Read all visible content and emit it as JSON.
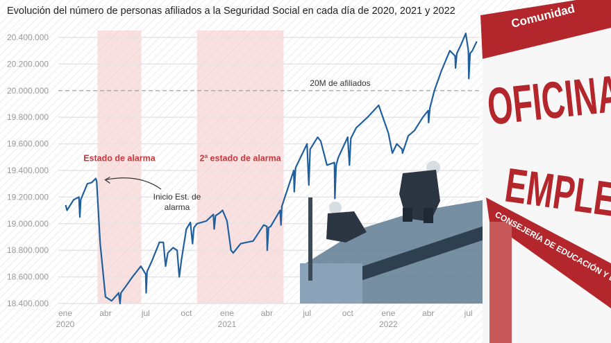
{
  "chart_data": {
    "type": "line",
    "title": "Evolución del número de personas afiliados a la Seguridad Social en cada día de 2020, 2021 y 2022",
    "xlabel": "",
    "ylabel": "",
    "ylim": [
      18400000,
      20400000
    ],
    "xlim": [
      "2020-01-01",
      "2022-07-31"
    ],
    "grid": true,
    "y_ticks": [
      "18.400.000",
      "18.600.000",
      "18.800.000",
      "19.000.000",
      "19.200.000",
      "19.400.000",
      "19.600.000",
      "19.800.000",
      "20.000.000",
      "20.200.000",
      "20.400.000"
    ],
    "y_tick_values": [
      18400000,
      18600000,
      18800000,
      19000000,
      19200000,
      19400000,
      19600000,
      19800000,
      20000000,
      20200000,
      20400000
    ],
    "x_ticks": [
      {
        "date": "2020-01-01",
        "label": "ene",
        "year": "2020"
      },
      {
        "date": "2020-04-01",
        "label": "abr",
        "year": ""
      },
      {
        "date": "2020-07-01",
        "label": "jul",
        "year": ""
      },
      {
        "date": "2020-10-01",
        "label": "oct",
        "year": ""
      },
      {
        "date": "2021-01-01",
        "label": "ene",
        "year": "2021"
      },
      {
        "date": "2021-04-01",
        "label": "abr",
        "year": ""
      },
      {
        "date": "2021-07-01",
        "label": "jul",
        "year": ""
      },
      {
        "date": "2021-10-01",
        "label": "oct",
        "year": ""
      },
      {
        "date": "2022-01-01",
        "label": "ene",
        "year": "2022"
      },
      {
        "date": "2022-04-01",
        "label": "abr",
        "year": ""
      },
      {
        "date": "2022-07-01",
        "label": "jul",
        "year": ""
      }
    ],
    "reference_line": {
      "value": 20000000,
      "label": "20M de afiliados"
    },
    "shaded_periods": [
      {
        "start": "2020-03-14",
        "end": "2020-06-21",
        "label": "Estado de alarma"
      },
      {
        "start": "2020-10-25",
        "end": "2021-05-09",
        "label": "2ª estado de alarma"
      }
    ],
    "annotation": {
      "date": "2020-03-14",
      "value": 19340000,
      "lines": [
        "Inicio Est. de",
        "alarma"
      ]
    },
    "series": [
      {
        "color": "#1f5f9e",
        "points": [
          [
            "2020-01-02",
            19140000
          ],
          [
            "2020-01-05",
            19100000
          ],
          [
            "2020-01-20",
            19180000
          ],
          [
            "2020-02-01",
            19200000
          ],
          [
            "2020-02-03",
            19050000
          ],
          [
            "2020-02-05",
            19180000
          ],
          [
            "2020-02-20",
            19300000
          ],
          [
            "2020-03-01",
            19310000
          ],
          [
            "2020-03-10",
            19340000
          ],
          [
            "2020-03-12",
            19320000
          ],
          [
            "2020-03-20",
            18850000
          ],
          [
            "2020-04-01",
            18450000
          ],
          [
            "2020-04-15",
            18420000
          ],
          [
            "2020-05-01",
            18480000
          ],
          [
            "2020-05-04",
            18400000
          ],
          [
            "2020-05-06",
            18480000
          ],
          [
            "2020-05-15",
            18520000
          ],
          [
            "2020-06-01",
            18600000
          ],
          [
            "2020-06-20",
            18680000
          ],
          [
            "2020-07-01",
            18620000
          ],
          [
            "2020-07-02",
            18480000
          ],
          [
            "2020-07-04",
            18640000
          ],
          [
            "2020-07-15",
            18720000
          ],
          [
            "2020-08-01",
            18860000
          ],
          [
            "2020-08-10",
            18860000
          ],
          [
            "2020-08-15",
            18680000
          ],
          [
            "2020-08-20",
            18780000
          ],
          [
            "2020-09-01",
            18820000
          ],
          [
            "2020-09-10",
            18800000
          ],
          [
            "2020-09-15",
            18600000
          ],
          [
            "2020-09-20",
            18730000
          ],
          [
            "2020-10-01",
            18960000
          ],
          [
            "2020-10-10",
            19010000
          ],
          [
            "2020-10-15",
            18850000
          ],
          [
            "2020-10-18",
            18970000
          ],
          [
            "2020-10-25",
            19000000
          ],
          [
            "2020-11-15",
            19020000
          ],
          [
            "2020-12-01",
            19070000
          ],
          [
            "2020-12-03",
            18960000
          ],
          [
            "2020-12-06",
            19060000
          ],
          [
            "2020-12-15",
            19080000
          ],
          [
            "2020-12-22",
            19100000
          ],
          [
            "2021-01-01",
            19020000
          ],
          [
            "2021-01-10",
            18800000
          ],
          [
            "2021-01-15",
            18780000
          ],
          [
            "2021-02-01",
            18850000
          ],
          [
            "2021-03-01",
            18870000
          ],
          [
            "2021-03-25",
            18990000
          ],
          [
            "2021-04-01",
            18980000
          ],
          [
            "2021-04-02",
            18800000
          ],
          [
            "2021-04-05",
            18970000
          ],
          [
            "2021-04-10",
            18980000
          ],
          [
            "2021-05-01",
            19100000
          ],
          [
            "2021-05-03",
            18990000
          ],
          [
            "2021-05-05",
            19130000
          ],
          [
            "2021-06-01",
            19400000
          ],
          [
            "2021-06-02",
            19240000
          ],
          [
            "2021-06-05",
            19420000
          ],
          [
            "2021-07-01",
            19600000
          ],
          [
            "2021-07-05",
            19290000
          ],
          [
            "2021-07-08",
            19560000
          ],
          [
            "2021-07-25",
            19650000
          ],
          [
            "2021-08-01",
            19620000
          ],
          [
            "2021-08-15",
            19440000
          ],
          [
            "2021-09-01",
            19460000
          ],
          [
            "2021-09-02",
            19190000
          ],
          [
            "2021-09-05",
            19440000
          ],
          [
            "2021-09-10",
            19500000
          ],
          [
            "2021-10-01",
            19650000
          ],
          [
            "2021-10-05",
            19440000
          ],
          [
            "2021-10-08",
            19640000
          ],
          [
            "2021-10-20",
            19720000
          ],
          [
            "2021-11-15",
            19800000
          ],
          [
            "2021-12-10",
            19890000
          ],
          [
            "2022-01-01",
            19680000
          ],
          [
            "2022-01-10",
            19530000
          ],
          [
            "2022-01-20",
            19600000
          ],
          [
            "2022-02-01",
            19560000
          ],
          [
            "2022-02-02",
            19530000
          ],
          [
            "2022-02-15",
            19660000
          ],
          [
            "2022-03-01",
            19700000
          ],
          [
            "2022-03-20",
            19800000
          ],
          [
            "2022-04-01",
            19850000
          ],
          [
            "2022-04-02",
            19760000
          ],
          [
            "2022-04-05",
            19870000
          ],
          [
            "2022-04-15",
            20000000
          ],
          [
            "2022-05-01",
            20150000
          ],
          [
            "2022-05-20",
            20300000
          ],
          [
            "2022-06-01",
            20260000
          ],
          [
            "2022-06-02",
            20170000
          ],
          [
            "2022-06-05",
            20280000
          ],
          [
            "2022-06-15",
            20350000
          ],
          [
            "2022-06-25",
            20430000
          ],
          [
            "2022-07-01",
            20300000
          ],
          [
            "2022-07-02",
            20090000
          ],
          [
            "2022-07-05",
            20280000
          ],
          [
            "2022-07-10",
            20300000
          ],
          [
            "2022-07-20",
            20370000
          ]
        ]
      }
    ]
  },
  "photo": {
    "sign_header": "Comunidad",
    "sign_line1": "OFICINA",
    "sign_line2": "EMPLEO",
    "sign_footer": "CONSEJERÍA DE EDUCACIÓN Y E",
    "sign_red": "#b3262b"
  }
}
